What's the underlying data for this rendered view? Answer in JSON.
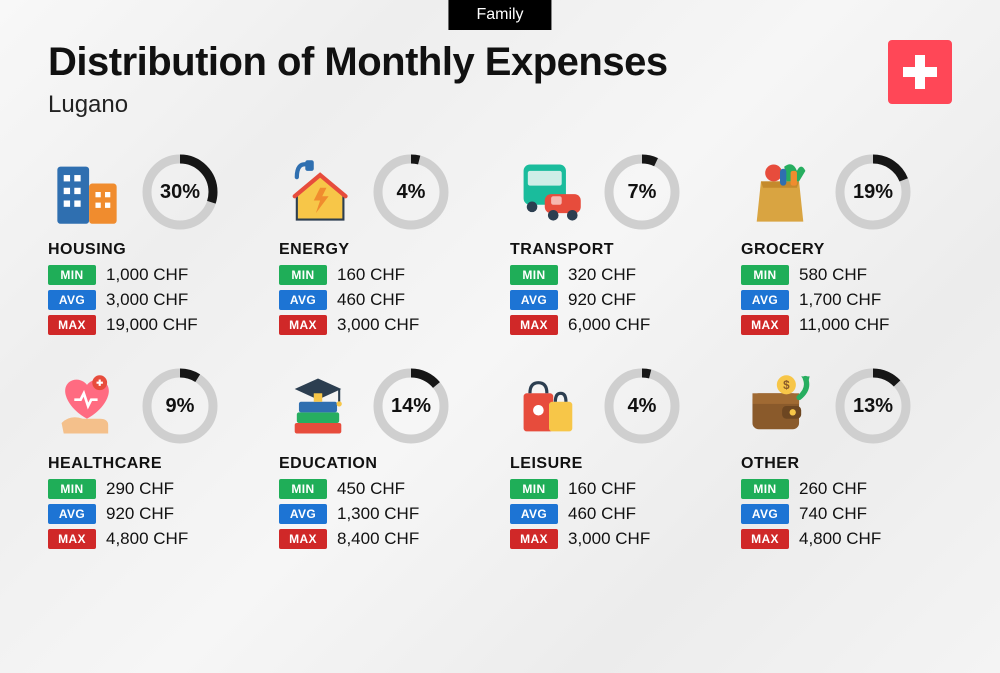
{
  "header": {
    "badge": "Family",
    "title": "Distribution of Monthly Expenses",
    "subtitle": "Lugano"
  },
  "flag": {
    "country": "Switzerland",
    "bg_color": "#ff4757",
    "cross_color": "#ffffff"
  },
  "labels": {
    "min": "MIN",
    "avg": "AVG",
    "max": "MAX"
  },
  "currency": "CHF",
  "donut_style": {
    "bg_stroke": "#cfcfcf",
    "fg_stroke": "#161616",
    "stroke_width": 9,
    "radius": 33
  },
  "tag_colors": {
    "min": "#1fae58",
    "avg": "#1d74d4",
    "max": "#d02828"
  },
  "categories": [
    {
      "key": "housing",
      "name": "HOUSING",
      "percent": 30,
      "min": "1,000 CHF",
      "avg": "3,000 CHF",
      "max": "19,000 CHF",
      "icon": "buildings"
    },
    {
      "key": "energy",
      "name": "ENERGY",
      "percent": 4,
      "min": "160 CHF",
      "avg": "460 CHF",
      "max": "3,000 CHF",
      "icon": "house-bolt"
    },
    {
      "key": "transport",
      "name": "TRANSPORT",
      "percent": 7,
      "min": "320 CHF",
      "avg": "920 CHF",
      "max": "6,000 CHF",
      "icon": "bus-car"
    },
    {
      "key": "grocery",
      "name": "GROCERY",
      "percent": 19,
      "min": "580 CHF",
      "avg": "1,700 CHF",
      "max": "11,000 CHF",
      "icon": "grocery-bag"
    },
    {
      "key": "healthcare",
      "name": "HEALTHCARE",
      "percent": 9,
      "min": "290 CHF",
      "avg": "920 CHF",
      "max": "4,800 CHF",
      "icon": "heart-hand"
    },
    {
      "key": "education",
      "name": "EDUCATION",
      "percent": 14,
      "min": "450 CHF",
      "avg": "1,300 CHF",
      "max": "8,400 CHF",
      "icon": "grad-books"
    },
    {
      "key": "leisure",
      "name": "LEISURE",
      "percent": 4,
      "min": "160 CHF",
      "avg": "460 CHF",
      "max": "3,000 CHF",
      "icon": "shopping-bags"
    },
    {
      "key": "other",
      "name": "OTHER",
      "percent": 13,
      "min": "260 CHF",
      "avg": "740 CHF",
      "max": "4,800 CHF",
      "icon": "wallet-arrow"
    }
  ],
  "icon_palette": {
    "blue": "#2f6fb0",
    "blue2": "#4a8fd0",
    "orange": "#f08c2e",
    "yellow": "#f7c648",
    "red": "#e74c3c",
    "green": "#27ae60",
    "teal": "#1abc9c",
    "brown": "#8a5a2b",
    "dark": "#2c3e50",
    "pink": "#ff6b81",
    "skin": "#f4c08b",
    "navy": "#34495e"
  }
}
